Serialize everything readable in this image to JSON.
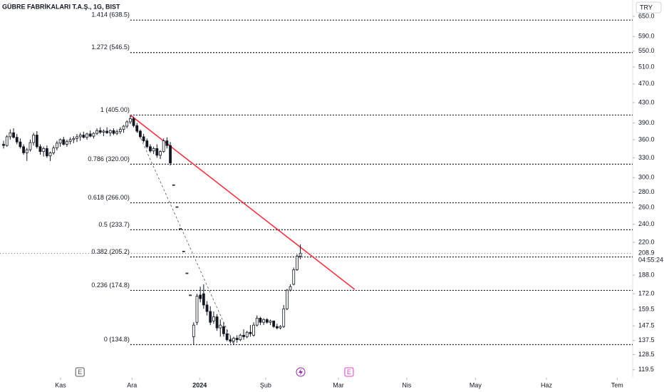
{
  "chart_data": {
    "type": "candlestick",
    "title": "GÜBRE FABRİKALARI T.A.Ş., 1G, BIST",
    "currency": "TRY",
    "log_scale": true,
    "ylim": [
      115,
      703
    ],
    "xlim": [
      -1.07,
      188
    ],
    "yticks": [
      {
        "value": 650,
        "label": "650.0"
      },
      {
        "value": 590,
        "label": "590.0"
      },
      {
        "value": 550,
        "label": "550.0"
      },
      {
        "value": 510,
        "label": "510.0"
      },
      {
        "value": 470,
        "label": "470.0"
      },
      {
        "value": 430,
        "label": "430.0"
      },
      {
        "value": 390,
        "label": "390.0"
      },
      {
        "value": 360,
        "label": "360.0"
      },
      {
        "value": 330,
        "label": "330.0"
      },
      {
        "value": 300,
        "label": "300.0"
      },
      {
        "value": 280,
        "label": "280.0"
      },
      {
        "value": 260,
        "label": "260.0"
      },
      {
        "value": 240,
        "label": "240.0"
      },
      {
        "value": 220,
        "label": "220.0"
      },
      {
        "value": 188,
        "label": "188.0"
      },
      {
        "value": 172,
        "label": "172.0"
      },
      159.5,
      147.5,
      137.5,
      128.5,
      119.5
    ],
    "xticks": [
      {
        "value": 17.1,
        "label": "Kas"
      },
      {
        "value": 38.5,
        "label": "Ara"
      },
      {
        "value": 58.8,
        "label": "2024"
      },
      {
        "value": 78.6,
        "label": "Şub"
      },
      {
        "value": 100.4,
        "label": "Mar"
      },
      {
        "value": 120.9,
        "label": "Nis"
      },
      {
        "value": 141.5,
        "label": "May"
      },
      {
        "value": 162.8,
        "label": "Haz"
      },
      {
        "value": 184,
        "label": "Tem"
      }
    ],
    "last_price": 208.9,
    "countdown": "04:55:24",
    "candles": {
      "open": [
        352,
        350,
        365,
        372,
        364,
        356,
        348,
        338,
        343,
        355,
        368,
        348,
        340,
        345,
        333,
        338,
        346,
        354,
        360,
        352,
        357,
        360,
        362,
        365,
        368,
        364,
        370,
        366,
        371,
        376,
        373,
        375,
        372,
        376,
        371,
        374,
        378,
        384,
        392,
        398,
        385,
        375,
        365,
        358,
        348,
        341,
        345,
        334,
        340,
        358,
        350,
        290,
        261,
        235,
        211,
        190,
        171,
        140,
        150,
        171,
        172,
        163,
        158,
        151,
        154,
        146,
        147,
        142,
        138,
        137,
        139,
        138,
        141,
        140,
        143,
        141,
        148,
        153,
        150,
        152,
        150,
        151,
        147,
        146,
        147,
        160,
        175,
        180,
        193,
        206
      ],
      "high": [
        358,
        368,
        378,
        380,
        370,
        362,
        352,
        346,
        360,
        372,
        375,
        352,
        348,
        350,
        340,
        350,
        358,
        362,
        365,
        360,
        364,
        366,
        370,
        372,
        374,
        372,
        376,
        373,
        380,
        382,
        378,
        382,
        378,
        380,
        378,
        382,
        386,
        395,
        405,
        402,
        390,
        378,
        370,
        362,
        352,
        348,
        352,
        342,
        362,
        364,
        356,
        290,
        261,
        235,
        211,
        190,
        171,
        150,
        172,
        178,
        180,
        166,
        162,
        158,
        156,
        152,
        150,
        145,
        141,
        140,
        141,
        142,
        145,
        144,
        148,
        150,
        155,
        154,
        153,
        153,
        152,
        151,
        149,
        148,
        163,
        176,
        180,
        195,
        208,
        218
      ],
      "low": [
        345,
        348,
        360,
        362,
        352,
        345,
        335,
        325,
        340,
        350,
        345,
        335,
        332,
        330,
        325,
        335,
        342,
        348,
        350,
        348,
        352,
        354,
        356,
        358,
        362,
        360,
        364,
        362,
        368,
        370,
        366,
        370,
        366,
        368,
        368,
        370,
        372,
        380,
        388,
        382,
        372,
        362,
        355,
        345,
        338,
        336,
        330,
        328,
        338,
        345,
        318,
        290,
        261,
        235,
        211,
        190,
        171,
        135,
        148,
        165,
        160,
        155,
        148,
        149,
        144,
        140,
        140,
        137,
        135.5,
        134.8,
        136,
        137,
        138,
        139,
        140,
        140,
        147,
        148,
        148,
        149,
        148,
        146,
        145,
        145,
        146,
        159,
        174,
        179,
        192,
        203
      ],
      "close": [
        350,
        365,
        372,
        364,
        356,
        348,
        338,
        343,
        355,
        368,
        348,
        340,
        345,
        333,
        338,
        346,
        354,
        360,
        352,
        357,
        360,
        362,
        365,
        368,
        364,
        370,
        366,
        371,
        376,
        373,
        375,
        372,
        376,
        371,
        374,
        378,
        384,
        392,
        398,
        385,
        375,
        365,
        358,
        348,
        341,
        345,
        334,
        340,
        358,
        350,
        322,
        290,
        261,
        235,
        211,
        190,
        171,
        148,
        170,
        168,
        163,
        158,
        150,
        154,
        146,
        148,
        142,
        138,
        137,
        139,
        138,
        141,
        140,
        143,
        142,
        148,
        153,
        150,
        152,
        150,
        151,
        147,
        146,
        147,
        160,
        175,
        178,
        193,
        206,
        208.9
      ]
    },
    "fibonacci": {
      "x_start": 38,
      "x_end": 69,
      "levels": [
        {
          "value": 638.5,
          "label": "1.414 (638.5)"
        },
        {
          "value": 546.5,
          "label": "1.272 (546.5)"
        },
        {
          "value": 405,
          "label": "1 (405.00)"
        },
        {
          "value": 320,
          "label": "0.786 (320.00)"
        },
        {
          "value": 266,
          "label": "0.618 (266.00)"
        },
        {
          "value": 233.7,
          "label": "0.5 (233.7)"
        },
        {
          "value": 205.2,
          "label": "0.382 (205.2)"
        },
        {
          "value": 174.8,
          "label": "0.236 (174.8)"
        },
        {
          "value": 134.8,
          "label": "0 (134.8)"
        }
      ]
    },
    "trend_line": {
      "color": "#f23645",
      "x": [
        38,
        105.3
      ],
      "y": [
        405,
        175.6
      ]
    },
    "events": [
      {
        "x": 22.9,
        "label": "E",
        "color": "#555"
      },
      {
        "x": 103.6,
        "label": "E",
        "color": "#e040c0"
      }
    ]
  }
}
